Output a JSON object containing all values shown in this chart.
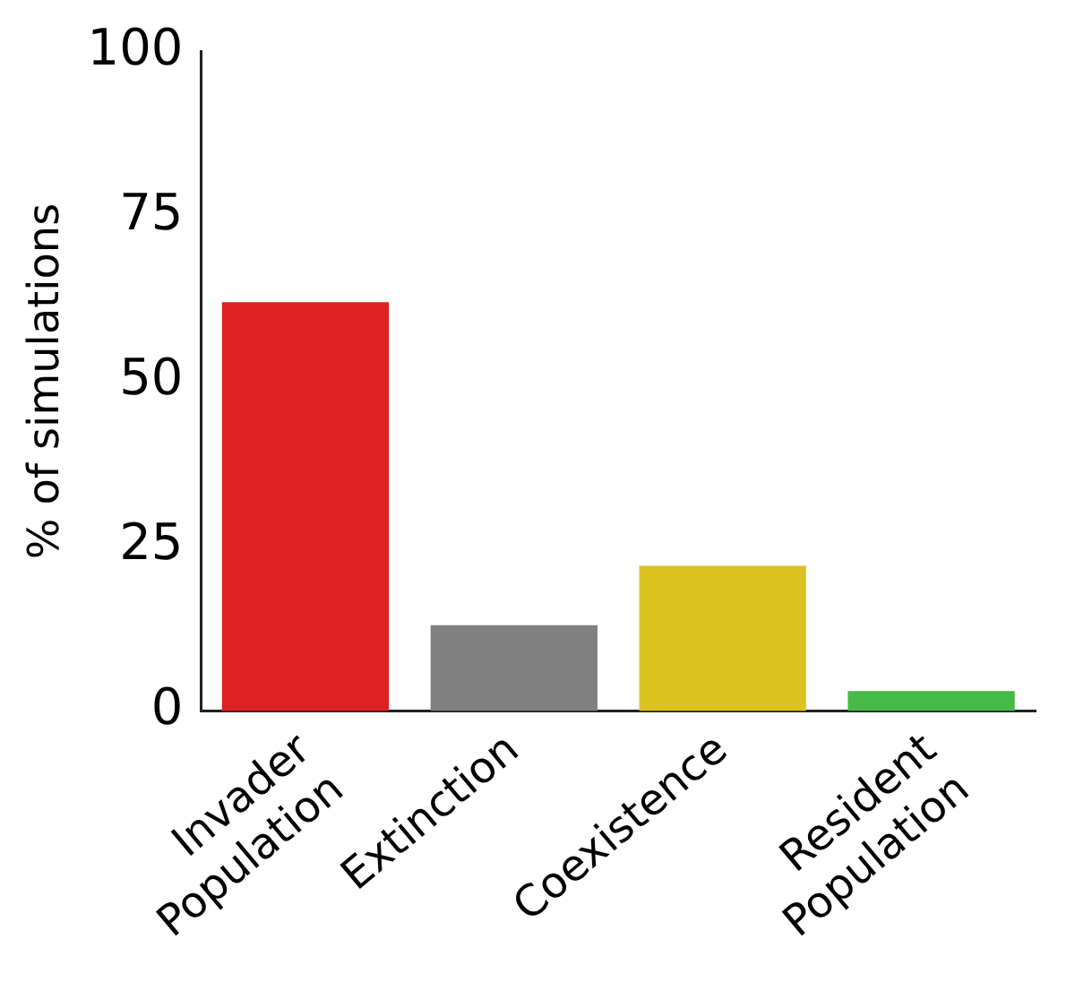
{
  "chart_data": {
    "type": "bar",
    "ylabel": "% of simulations",
    "categories": [
      "Invader Population",
      "Extinction",
      "Coexistence",
      "Resident Population"
    ],
    "values": [
      62,
      13,
      22,
      3
    ],
    "colors": [
      "#de2224",
      "#808080",
      "#dec220",
      "#46b946"
    ],
    "ylim": [
      0,
      100
    ],
    "yticks": [
      0,
      25,
      50,
      75,
      100
    ],
    "grid": false,
    "legend": false
  }
}
